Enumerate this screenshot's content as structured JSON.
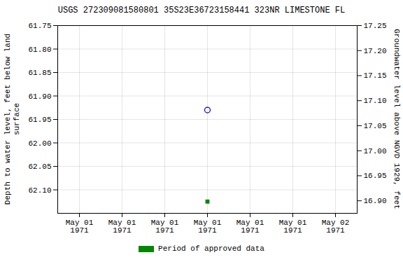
{
  "chart_data": {
    "type": "scatter",
    "title": "USGS 272309081580801 35S23E36723158441 323NR LIMESTONE FL",
    "ylabel": "Depth to water level, feet below land\nsurface",
    "y2label": "Groundwater level above NGVD 1929, feet",
    "categories": [
      "May 01\n1971",
      "May 01\n1971",
      "May 01\n1971",
      "May 01\n1971",
      "May 01\n1971",
      "May 01\n1971",
      "May 02\n1971"
    ],
    "series": [
      {
        "color": "#0000bb",
        "marker": "circle",
        "values": [
          null,
          null,
          null,
          61.93,
          null,
          null,
          null
        ]
      },
      {
        "name": "Period of approved data",
        "color": "#008800",
        "marker": "square",
        "values": [
          null,
          null,
          null,
          62.125,
          null,
          null,
          null
        ]
      }
    ],
    "ylim": [
      62.15,
      61.75
    ],
    "yticks": [
      61.75,
      {
        "value": 61.8,
        "label": "61.80"
      },
      61.85,
      {
        "value": 61.9,
        "label": "61.90"
      },
      61.95,
      {
        "value": 62.0,
        "label": "62.00"
      },
      62.05,
      {
        "value": 62.1,
        "label": "62.10"
      }
    ],
    "y2lim": [
      16.875,
      17.25
    ],
    "y2ticks": [
      17.25,
      {
        "value": 17.2,
        "label": "17.20"
      },
      17.15,
      {
        "value": 17.1,
        "label": "17.10"
      },
      17.05,
      {
        "value": 17.0,
        "label": "17.00"
      },
      16.95,
      {
        "value": 16.9,
        "label": "16.90"
      }
    ],
    "grid": true,
    "legend": "bottom"
  }
}
